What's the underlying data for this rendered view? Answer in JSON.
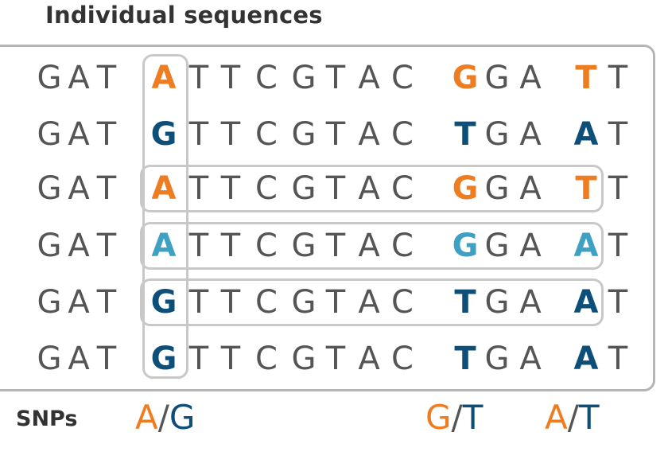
{
  "title": "Individual sequences",
  "sequences": [
    [
      "G",
      "A",
      "T",
      "A",
      "T",
      "T",
      "C",
      "G",
      "T",
      "A",
      "C",
      "G",
      "G",
      "A",
      "T",
      "T"
    ],
    [
      "G",
      "A",
      "T",
      "G",
      "T",
      "T",
      "C",
      "G",
      "T",
      "A",
      "C",
      "T",
      "G",
      "A",
      "A",
      "T"
    ],
    [
      "G",
      "A",
      "T",
      "A",
      "T",
      "T",
      "C",
      "G",
      "T",
      "A",
      "C",
      "G",
      "G",
      "A",
      "T",
      "T"
    ],
    [
      "G",
      "A",
      "T",
      "A",
      "T",
      "T",
      "C",
      "G",
      "T",
      "A",
      "C",
      "G",
      "G",
      "A",
      "A",
      "T"
    ],
    [
      "G",
      "A",
      "T",
      "G",
      "T",
      "T",
      "C",
      "G",
      "T",
      "A",
      "C",
      "T",
      "G",
      "A",
      "A",
      "T"
    ],
    [
      "G",
      "A",
      "T",
      "G",
      "T",
      "T",
      "C",
      "G",
      "T",
      "A",
      "C",
      "T",
      "G",
      "A",
      "A",
      "T"
    ]
  ],
  "snp_columns": [
    3,
    11,
    14
  ],
  "snp_colors": [
    [
      "orange",
      "orange",
      "orange"
    ],
    [
      "navy",
      "navy",
      "navy"
    ],
    [
      "orange",
      "orange",
      "orange"
    ],
    [
      "teal",
      "teal",
      "teal"
    ],
    [
      "navy",
      "navy",
      "navy"
    ],
    [
      "navy",
      "navy",
      "navy"
    ]
  ],
  "colors": {
    "orange": "#ee7d22",
    "navy": "#0e4f79",
    "teal": "#3ea0c2",
    "base": "#555555",
    "frame": "#b5b5b5"
  },
  "snps_label": "SNPs",
  "snps": [
    {
      "allele1": "A",
      "separator": "/",
      "allele2": "G"
    },
    {
      "allele1": "G",
      "separator": "/",
      "allele2": "T"
    },
    {
      "allele1": "A",
      "separator": "/",
      "allele2": "T"
    }
  ]
}
